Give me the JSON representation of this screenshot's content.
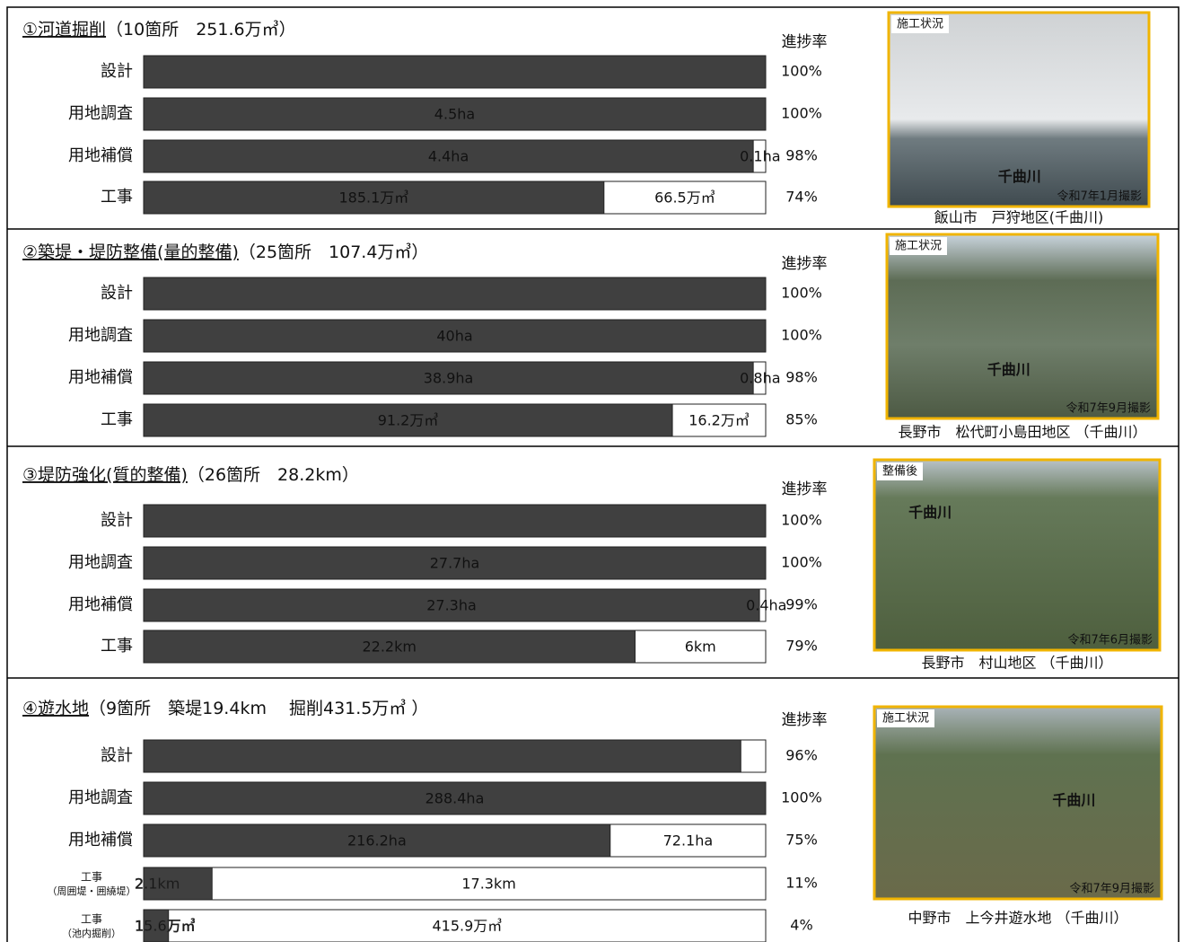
{
  "sections": [
    {
      "title_main": "①河道掘削",
      "title_detail": "（10箇所　251.6万㎥）",
      "rate_header": "進捗率",
      "rows": [
        {
          "label": "設計",
          "rate": {
            "value": 100,
            "label": "100%"
          }
        },
        {
          "label": "用地調査",
          "done_label": "4.5ha",
          "rate": {
            "value": 100,
            "label": "100%"
          }
        },
        {
          "label": "用地補償",
          "done_label": "4.4ha",
          "remain_label": "0.1ha",
          "rate": {
            "value": 98,
            "label": "98%"
          }
        },
        {
          "label": "工事",
          "done_label": "185.1万㎥",
          "remain_label": "66.5万㎥",
          "rate": {
            "value": 74,
            "label": "74%"
          }
        }
      ],
      "photo": {
        "tag": "施工状況",
        "river": "千曲川",
        "date": "令和7年1月撮影",
        "caption": "飯山市　戸狩地区(千曲川)"
      }
    },
    {
      "title_main": "②築堤・堤防整備(量的整備)",
      "title_detail": "（25箇所　107.4万㎥）",
      "rate_header": "進捗率",
      "rows": [
        {
          "label": "設計",
          "rate": {
            "value": 100,
            "label": "100%"
          }
        },
        {
          "label": "用地調査",
          "done_label": "40ha",
          "rate": {
            "value": 100,
            "label": "100%"
          }
        },
        {
          "label": "用地補償",
          "done_label": "38.9ha",
          "remain_label": "0.8ha",
          "rate": {
            "value": 98,
            "label": "98%"
          }
        },
        {
          "label": "工事",
          "done_label": "91.2万㎥",
          "remain_label": "16.2万㎥",
          "rate": {
            "value": 85,
            "label": "85%"
          }
        }
      ],
      "photo": {
        "tag": "施工状況",
        "river": "千曲川",
        "date": "令和7年9月撮影",
        "caption": "長野市　松代町小島田地区 （千曲川）"
      }
    },
    {
      "title_main": "③堤防強化(質的整備)",
      "title_detail": "（26箇所　28.2km）",
      "rate_header": "進捗率",
      "rows": [
        {
          "label": "設計",
          "rate": {
            "value": 100,
            "label": "100%"
          }
        },
        {
          "label": "用地調査",
          "done_label": "27.7ha",
          "rate": {
            "value": 100,
            "label": "100%"
          }
        },
        {
          "label": "用地補償",
          "done_label": "27.3ha",
          "remain_label": "0.4ha",
          "rate": {
            "value": 99,
            "label": "99%"
          }
        },
        {
          "label": "工事",
          "done_label": "22.2km",
          "remain_label": "6km",
          "rate": {
            "value": 79,
            "label": "79%"
          }
        }
      ],
      "photo": {
        "tag": "整備後",
        "river": "千曲川",
        "date": "令和7年6月撮影",
        "caption": "長野市　村山地区 （千曲川）"
      }
    },
    {
      "title_main": "④遊水地",
      "title_detail": "（9箇所　築堤19.4km　 掘削431.5万㎥ ）",
      "rate_header": "進捗率",
      "rows": [
        {
          "label": "設計",
          "rate": {
            "value": 96,
            "label": "96%"
          }
        },
        {
          "label": "用地調査",
          "done_label": "288.4ha",
          "rate": {
            "value": 100,
            "label": "100%"
          }
        },
        {
          "label": "用地補償",
          "done_label": "216.2ha",
          "remain_label": "72.1ha",
          "rate": {
            "value": 75,
            "label": "75%"
          }
        },
        {
          "label": "工事",
          "sublabel": "（周囲堤・囲繞堤）",
          "done_label": "2.1km",
          "remain_label": "17.3km",
          "rate": {
            "value": 11,
            "label": "11%"
          }
        },
        {
          "label": "工事",
          "sublabel": "（池内掘削）",
          "done_label": "15.6万㎥",
          "remain_label": "415.9万㎥",
          "rate": {
            "value": 4,
            "label": "4%"
          }
        }
      ],
      "photo": {
        "tag": "施工状況",
        "river": "千曲川",
        "date": "令和7年9月撮影",
        "caption": "中野市　上今井遊水地 （千曲川）"
      }
    }
  ]
}
